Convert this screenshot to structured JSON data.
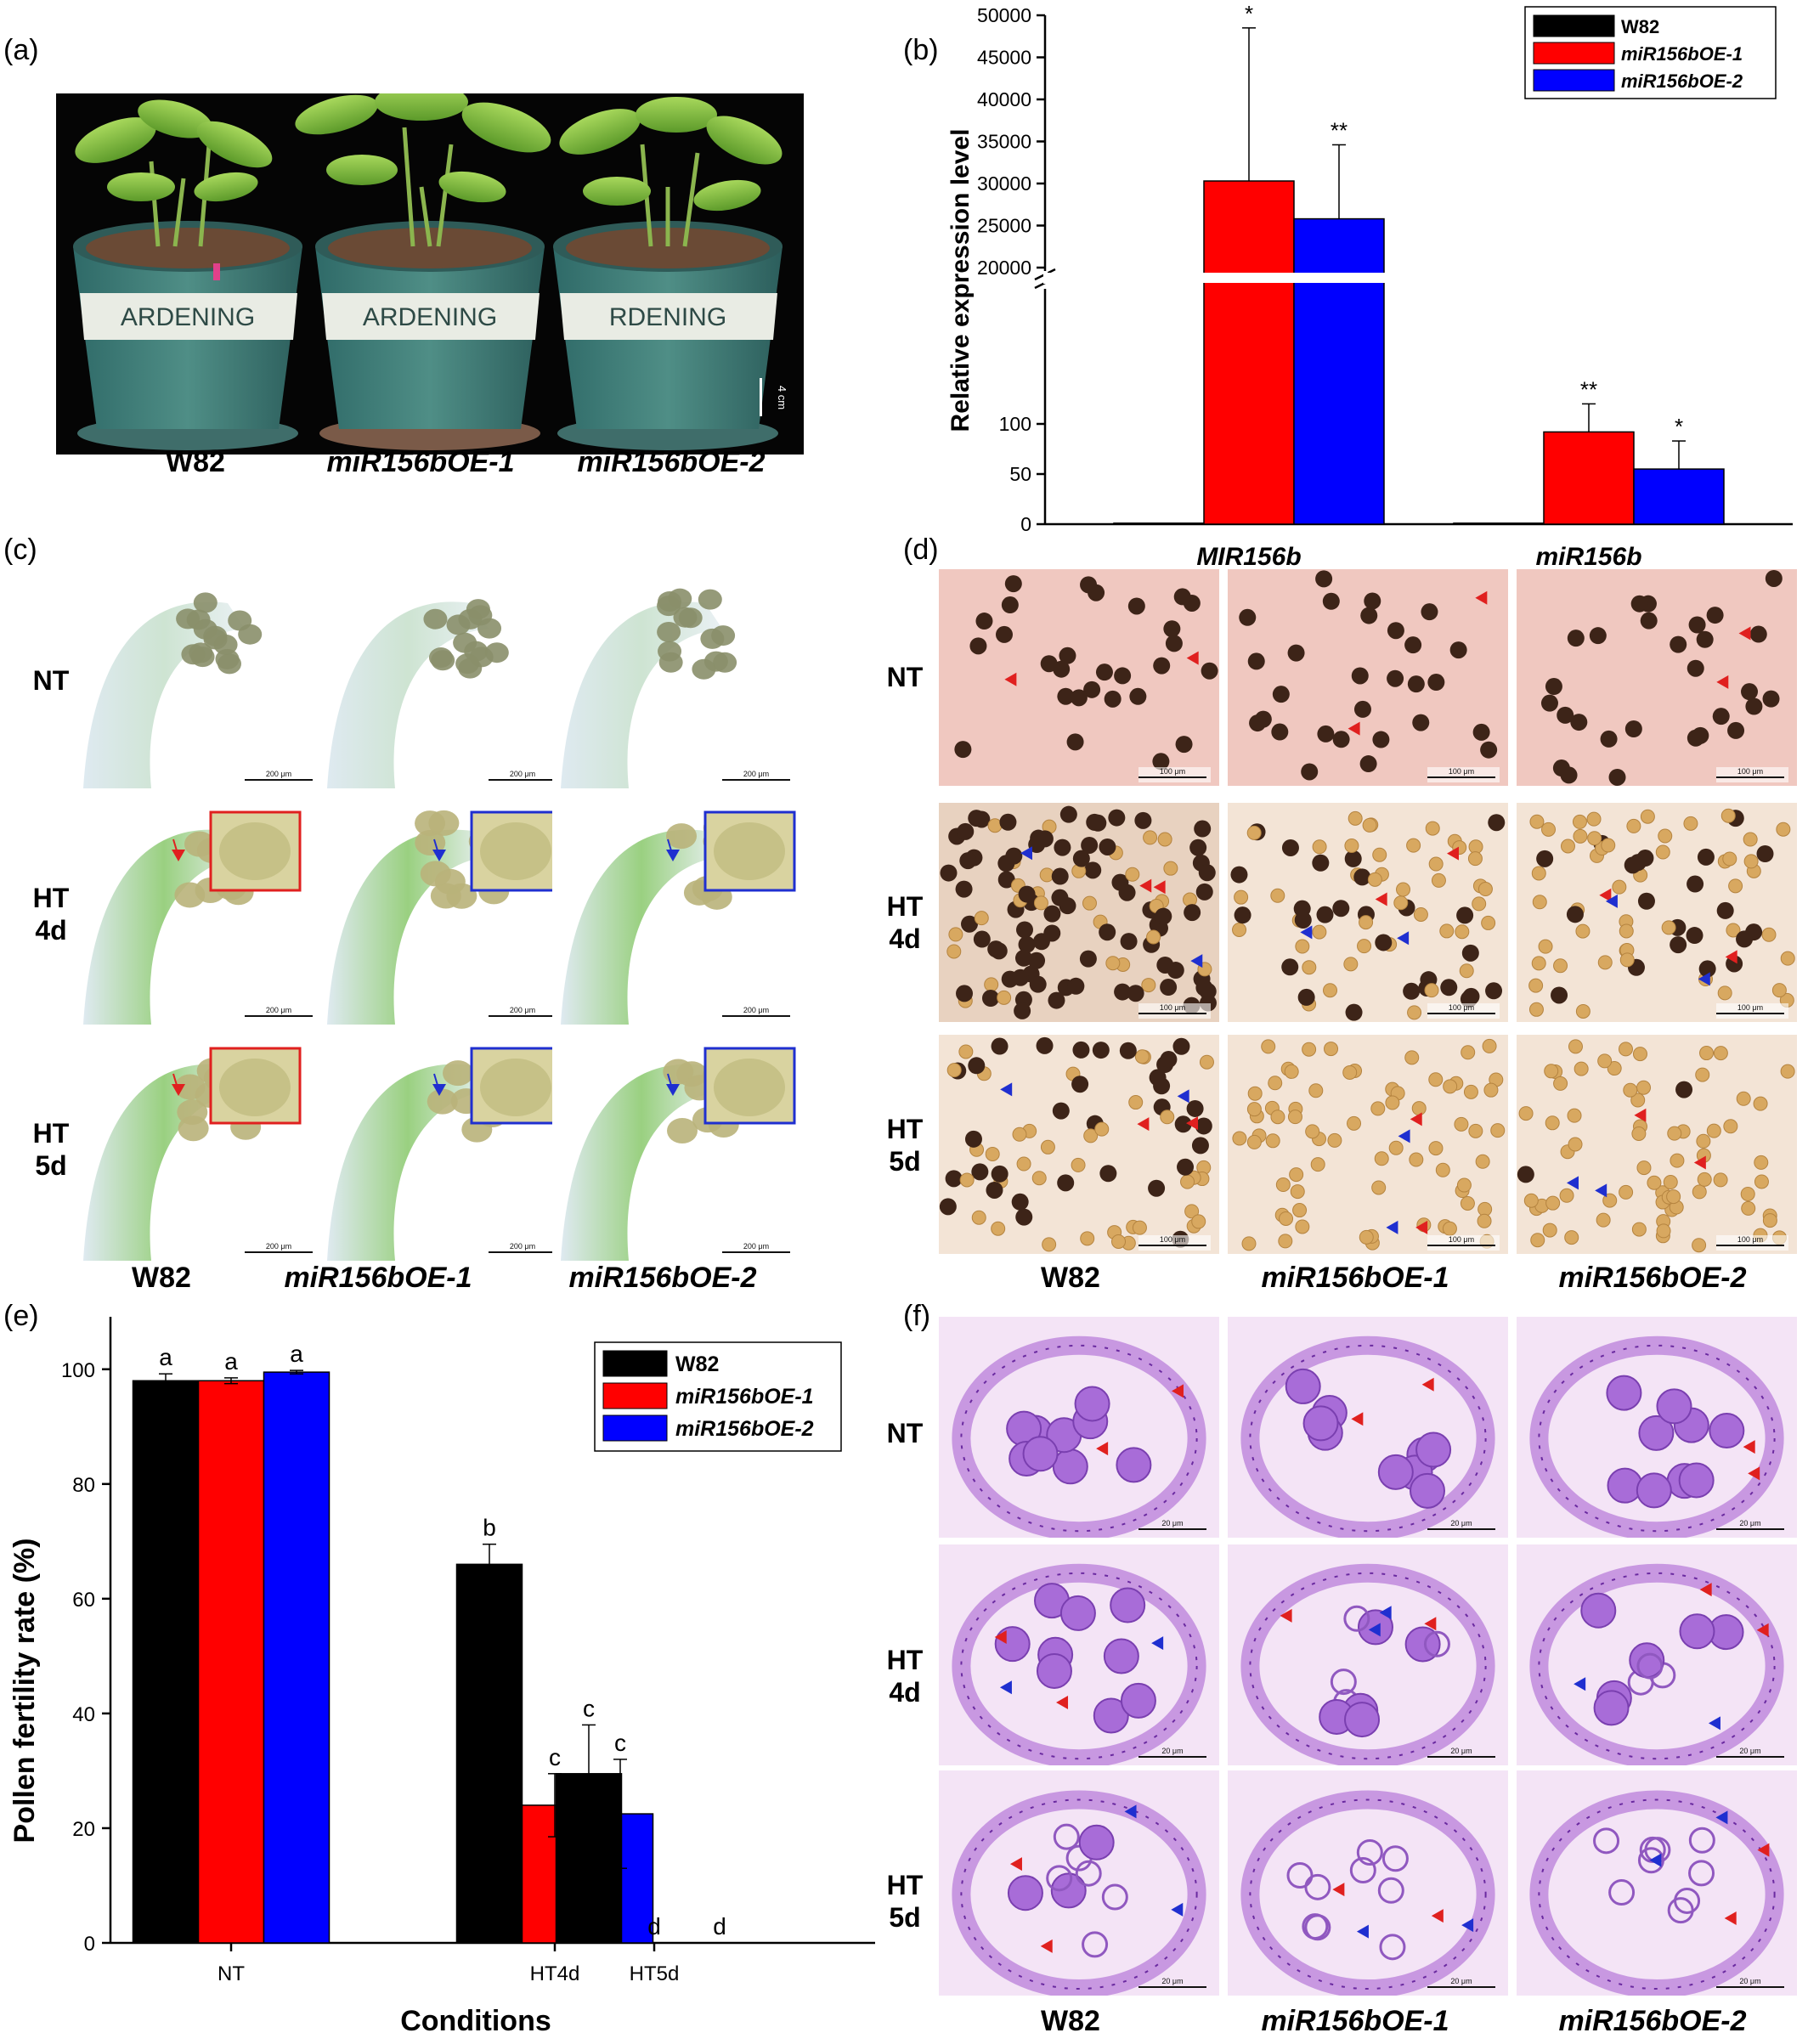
{
  "panel_labels": {
    "a": "(a)",
    "b": "(b)",
    "c": "(c)",
    "d": "(d)",
    "e": "(e)",
    "f": "(f)"
  },
  "genotypes": [
    "W82",
    "miR156bOE-1",
    "miR156bOE-2"
  ],
  "row_labels": {
    "nt": "NT",
    "ht4": [
      "HT",
      "4d"
    ],
    "ht5": [
      "HT",
      "5d"
    ]
  },
  "panel_a": {
    "pot_text": [
      "ARDENING",
      "ARDENING",
      "RDENING"
    ],
    "scale_bar": "4 cm"
  },
  "panel_c": {
    "scale_bar": "200 μm"
  },
  "panel_d": {
    "scale_bar": "100 μm"
  },
  "panel_f": {
    "scale_bar": "20 μm"
  },
  "colors": {
    "W82": "#000000",
    "miR156bOE-1": "#ff0000",
    "miR156bOE-2": "#0000ff",
    "red_arrow": "#e0201f",
    "blue_arrow": "#1f2fd0"
  },
  "chart_data": [
    {
      "id": "b",
      "type": "bar",
      "categories": [
        "MIR156b",
        "miR156b"
      ],
      "series": [
        {
          "name": "W82",
          "values": [
            1,
            1
          ]
        },
        {
          "name": "miR156bOE-1",
          "values": [
            30300,
            92
          ]
        },
        {
          "name": "miR156bOE-2",
          "values": [
            25800,
            55
          ]
        }
      ],
      "errors": {
        "miR156bOE-1": [
          18200,
          28
        ],
        "miR156bOE-2": [
          8800,
          28
        ]
      },
      "significance": {
        "miR156bOE-1": [
          "*",
          "**"
        ],
        "miR156bOE-2": [
          "**",
          "*"
        ]
      },
      "ylabel": "Relative expression level",
      "axis_break": true,
      "y_lower": {
        "range": [
          0,
          150
        ],
        "ticks": [
          0,
          50,
          100
        ]
      },
      "y_upper": {
        "range": [
          20000,
          50000
        ],
        "ticks": [
          20000,
          25000,
          30000,
          35000,
          40000,
          45000,
          50000
        ]
      },
      "legend": "top-right"
    },
    {
      "id": "e",
      "type": "bar",
      "categories": [
        "NT",
        "HT4d",
        "HT5d"
      ],
      "series": [
        {
          "name": "W82",
          "values": [
            98,
            66,
            29.5
          ]
        },
        {
          "name": "miR156bOE-1",
          "values": [
            98,
            24,
            0
          ]
        },
        {
          "name": "miR156bOE-2",
          "values": [
            99.5,
            22.5,
            0
          ]
        }
      ],
      "errors": {
        "W82": [
          1.2,
          3.5,
          8.5
        ],
        "miR156bOE-1": [
          0.5,
          5.5,
          0
        ],
        "miR156bOE-2": [
          0.3,
          9.5,
          0
        ]
      },
      "letters": {
        "W82": [
          "a",
          "b",
          "c"
        ],
        "miR156bOE-1": [
          "a",
          "c",
          "d"
        ],
        "miR156bOE-2": [
          "a",
          "c",
          "d"
        ]
      },
      "ylabel": "Pollen fertility rate (%)",
      "xlabel": "Conditions",
      "ylim": [
        0,
        105
      ],
      "yticks": [
        0,
        20,
        40,
        60,
        80,
        100
      ],
      "legend": "top-right"
    }
  ]
}
